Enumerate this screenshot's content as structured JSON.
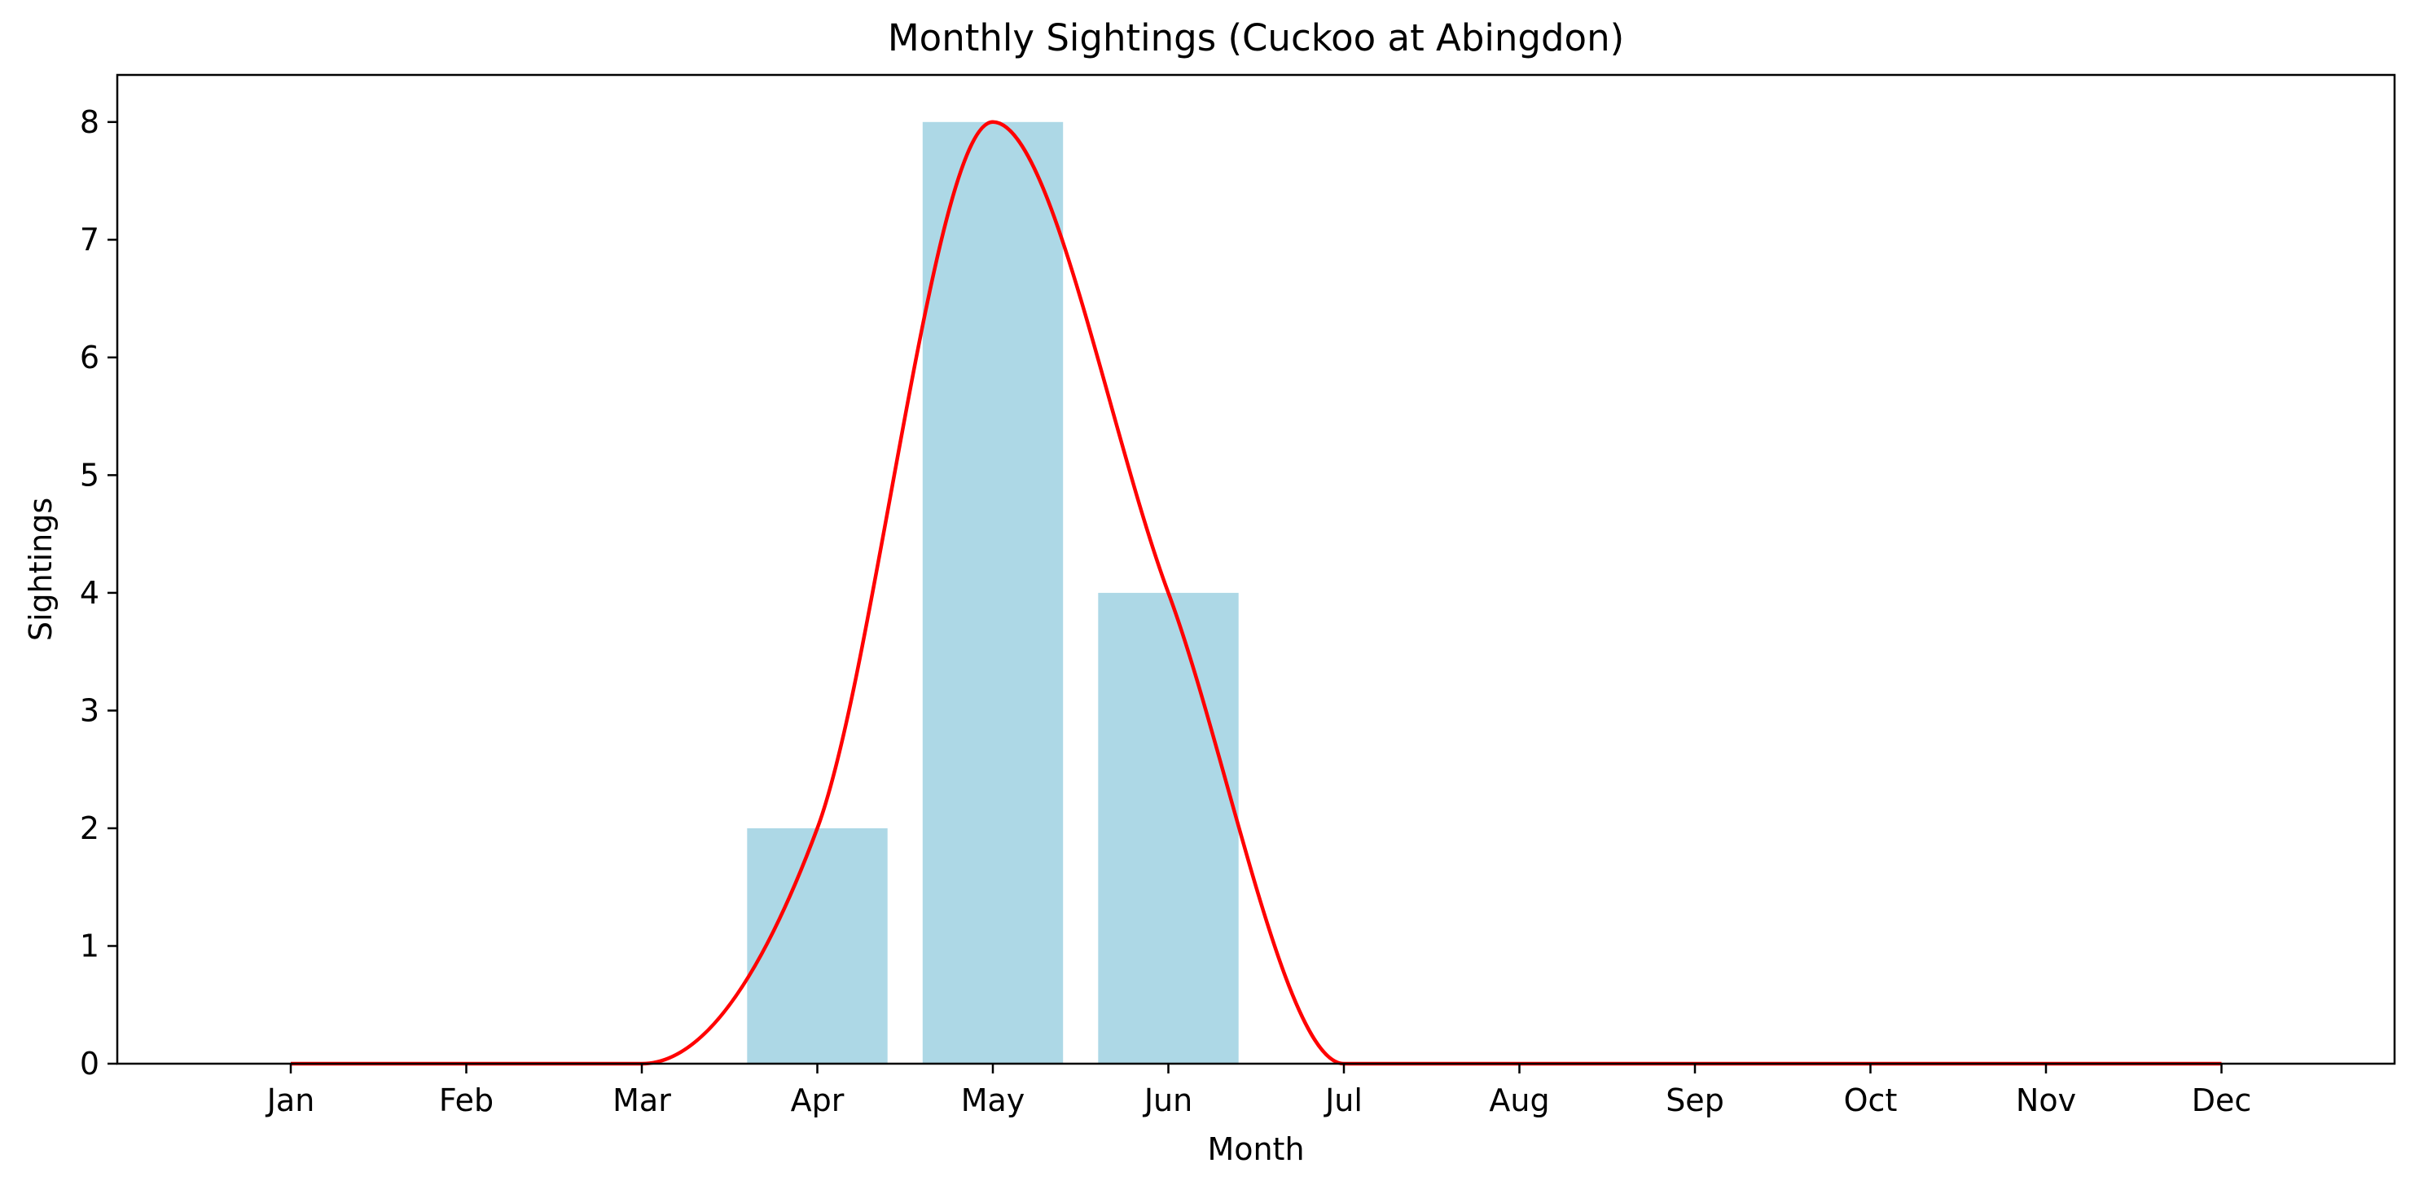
{
  "chart_data": {
    "type": "bar",
    "title": "Monthly Sightings (Cuckoo at Abingdon)",
    "xlabel": "Month",
    "ylabel": "Sightings",
    "categories": [
      "Jan",
      "Feb",
      "Mar",
      "Apr",
      "May",
      "Jun",
      "Jul",
      "Aug",
      "Sep",
      "Oct",
      "Nov",
      "Dec"
    ],
    "values": [
      0,
      0,
      0,
      2,
      8,
      4,
      0,
      0,
      0,
      0,
      0,
      0
    ],
    "ylim": [
      0,
      8.4
    ],
    "yticks": [
      0,
      1,
      2,
      3,
      4,
      5,
      6,
      7,
      8
    ],
    "grid": false,
    "bar_color": "#add8e6",
    "line_color": "#ff0000",
    "smoothed_line": true
  }
}
